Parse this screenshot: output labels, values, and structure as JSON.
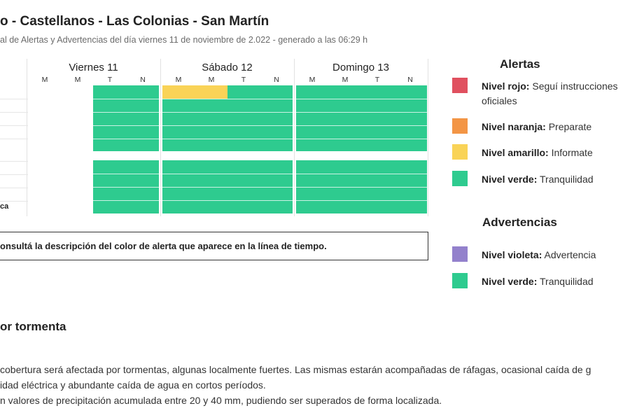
{
  "page": {
    "title": "o - Castellanos - Las Colonias - San Martín",
    "subtitle": "al de Alertas y Advertencias del día viernes 11 de noviembre de 2.022 - generado a las 06:29 h"
  },
  "timeline": {
    "days": [
      {
        "name": "Viernes 11",
        "periods": [
          "M",
          "M",
          "T",
          "N"
        ]
      },
      {
        "name": "Sábado 12",
        "periods": [
          "M",
          "M",
          "T",
          "N"
        ]
      },
      {
        "name": "Domingo 13",
        "periods": [
          "M",
          "M",
          "T",
          "N"
        ]
      }
    ],
    "row_labels": [
      "",
      "",
      "",
      "",
      "",
      "",
      "",
      "",
      "ca"
    ]
  },
  "note": {
    "text": "onsultá la descripción del color de alerta que aparece en la línea de tiempo."
  },
  "alerts_legend": {
    "title": "Alertas",
    "items": [
      {
        "level": "Nivel rojo:",
        "desc": "Seguí instrucciones oficiales",
        "color": "#e0505f"
      },
      {
        "level": "Nivel naranja:",
        "desc": "Preparate",
        "color": "#f39545"
      },
      {
        "level": "Nivel amarillo:",
        "desc": "Informate",
        "color": "#f9d357"
      },
      {
        "level": "Nivel verde:",
        "desc": "Tranquilidad",
        "color": "#2ecb8f"
      }
    ]
  },
  "warnings_legend": {
    "title": "Advertencias",
    "items": [
      {
        "level": "Nivel violeta:",
        "desc": "Advertencia",
        "color": "#9381cc"
      },
      {
        "level": "Nivel verde:",
        "desc": "Tranquilidad",
        "color": "#2ecb8f"
      }
    ]
  },
  "section": {
    "title": "or tormenta",
    "paragraphs": [
      "cobertura será afectada por tormentas, algunas localmente fuertes. Las mismas estarán acompañadas de ráfagas, ocasional caída de g",
      "idad eléctrica y abundante caída de agua en cortos períodos.",
      "n valores de precipitación acumulada entre 20 y 40 mm, pudiendo ser superados de forma localizada."
    ]
  },
  "colors": {
    "green": "#2ecb8f",
    "yellow": "#f9d357"
  }
}
